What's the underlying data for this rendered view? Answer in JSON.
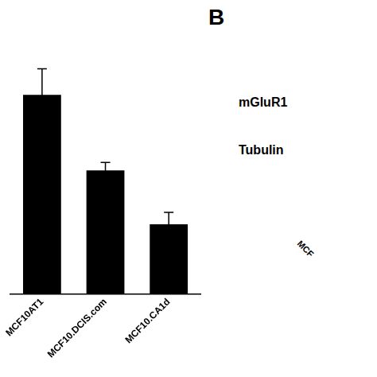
{
  "chart_data": {
    "type": "bar",
    "categories": [
      "MCF10AT1",
      "MCF10.DCIS.com",
      "MCF10.CA1d"
    ],
    "values": [
      1.0,
      0.62,
      0.35
    ],
    "errors": [
      0.13,
      0.04,
      0.06
    ],
    "color": "#000000",
    "ylim": [
      0,
      1.3
    ],
    "tick_labels": "x",
    "grid": false,
    "annotations": [
      "B",
      "mGluR1",
      "Tubulin",
      "MCF"
    ]
  }
}
